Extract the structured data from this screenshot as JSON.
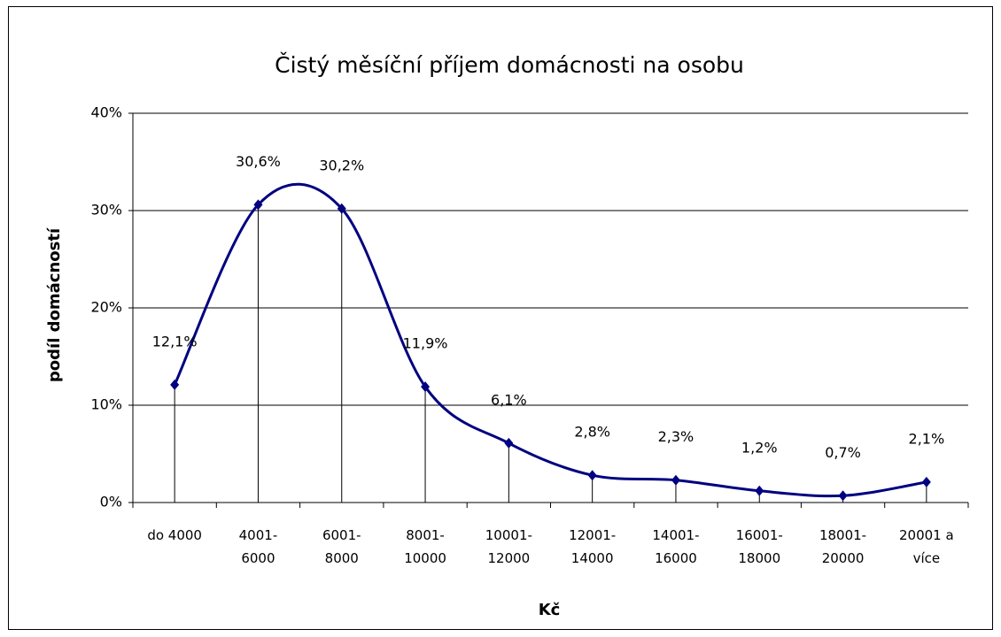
{
  "chart_data": {
    "type": "line",
    "title": "Čistý měsíční příjem domácnosti na osobu",
    "x_label": "Kč",
    "y_label": "podíl domácností",
    "categories": [
      "do 4000",
      "4001- 6000",
      "6001- 8000",
      "8001- 10000",
      "10001- 12000",
      "12001- 14000",
      "14001- 16000",
      "16001- 18000",
      "18001- 20000",
      "20001 a více"
    ],
    "series": [
      {
        "name": "podíl domácností",
        "color": "#000080",
        "values": [
          12.1,
          30.6,
          30.2,
          11.9,
          6.1,
          2.8,
          2.3,
          1.2,
          0.7,
          2.1
        ],
        "value_labels": [
          "12,1%",
          "30,6%",
          "30,2%",
          "11,9%",
          "6,1%",
          "2,8%",
          "2,3%",
          "1,2%",
          "0,7%",
          "2,1%"
        ]
      }
    ],
    "ylim": [
      0,
      40
    ],
    "yticks": [
      {
        "value": 0,
        "label": "0%"
      },
      {
        "value": 10,
        "label": "10%"
      },
      {
        "value": 20,
        "label": "20%"
      },
      {
        "value": 30,
        "label": "30%"
      },
      {
        "value": 40,
        "label": "40%"
      }
    ],
    "grid": true,
    "smooth": true,
    "drop_lines": true
  }
}
